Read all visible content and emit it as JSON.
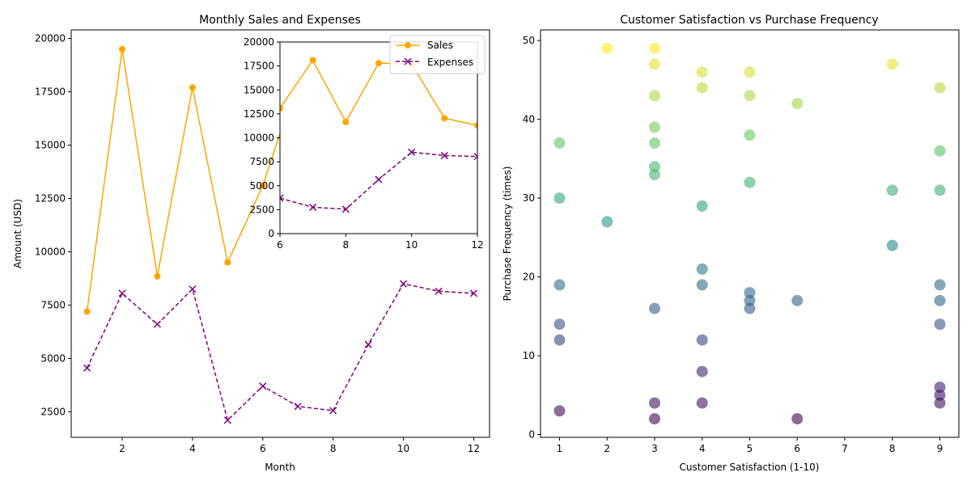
{
  "chart_data": [
    {
      "type": "line",
      "title": "Monthly Sales and Expenses",
      "xlabel": "Month",
      "ylabel": "Amount (USD)",
      "xlim": [
        0.55,
        12.45
      ],
      "ylim": [
        1300,
        20400
      ],
      "xticks": [
        2,
        4,
        6,
        8,
        10,
        12
      ],
      "yticks": [
        2500,
        5000,
        7500,
        10000,
        12500,
        15000,
        17500,
        20000
      ],
      "x": [
        1,
        2,
        3,
        4,
        5,
        6,
        7,
        8,
        9,
        10,
        11,
        12
      ],
      "series": [
        {
          "name": "Sales",
          "color": "#ffa500",
          "marker": "circle",
          "style": "solid",
          "values": [
            7200,
            19500,
            8850,
            17700,
            9500,
            13100,
            18100,
            11650,
            17800,
            17700,
            12050,
            11300
          ]
        },
        {
          "name": "Expenses",
          "color": "#800080",
          "marker": "x",
          "style": "dashed",
          "values": [
            4550,
            8050,
            6600,
            8250,
            2100,
            3700,
            2750,
            2550,
            5650,
            8500,
            8150,
            8050
          ]
        }
      ],
      "legend": "upper-right",
      "inset": {
        "xlim": [
          6,
          12
        ],
        "ylim": [
          0,
          20000
        ],
        "xticks": [
          6,
          8,
          10,
          12
        ],
        "yticks": [
          0,
          2500,
          5000,
          7500,
          10000,
          12500,
          15000,
          17500,
          20000
        ]
      }
    },
    {
      "type": "scatter",
      "title": "Customer Satisfaction vs Purchase Frequency",
      "xlabel": "Customer Satisfaction (1-10)",
      "ylabel": "Purchase Frequency (times)",
      "xlim": [
        0.6,
        9.4
      ],
      "ylim": [
        -0.35,
        51.35
      ],
      "xticks": [
        1,
        2,
        3,
        4,
        5,
        6,
        7,
        8,
        9
      ],
      "yticks": [
        0,
        10,
        20,
        30,
        40,
        50
      ],
      "colormap": "viridis",
      "color_range": [
        2,
        49
      ],
      "points": [
        {
          "x": 2,
          "y": 49
        },
        {
          "x": 3,
          "y": 49
        },
        {
          "x": 3,
          "y": 47
        },
        {
          "x": 8,
          "y": 47
        },
        {
          "x": 4,
          "y": 46
        },
        {
          "x": 5,
          "y": 46
        },
        {
          "x": 4,
          "y": 44
        },
        {
          "x": 9,
          "y": 44
        },
        {
          "x": 3,
          "y": 43
        },
        {
          "x": 5,
          "y": 43
        },
        {
          "x": 6,
          "y": 42
        },
        {
          "x": 3,
          "y": 39
        },
        {
          "x": 5,
          "y": 38
        },
        {
          "x": 1,
          "y": 37
        },
        {
          "x": 3,
          "y": 37
        },
        {
          "x": 9,
          "y": 36
        },
        {
          "x": 3,
          "y": 34
        },
        {
          "x": 3,
          "y": 33
        },
        {
          "x": 5,
          "y": 32
        },
        {
          "x": 8,
          "y": 31
        },
        {
          "x": 9,
          "y": 31
        },
        {
          "x": 1,
          "y": 30
        },
        {
          "x": 4,
          "y": 29
        },
        {
          "x": 2,
          "y": 27
        },
        {
          "x": 8,
          "y": 24
        },
        {
          "x": 4,
          "y": 21
        },
        {
          "x": 1,
          "y": 19
        },
        {
          "x": 4,
          "y": 19
        },
        {
          "x": 9,
          "y": 19
        },
        {
          "x": 5,
          "y": 18
        },
        {
          "x": 5,
          "y": 17
        },
        {
          "x": 6,
          "y": 17
        },
        {
          "x": 9,
          "y": 17
        },
        {
          "x": 3,
          "y": 16
        },
        {
          "x": 5,
          "y": 16
        },
        {
          "x": 1,
          "y": 14
        },
        {
          "x": 9,
          "y": 14
        },
        {
          "x": 1,
          "y": 12
        },
        {
          "x": 4,
          "y": 12
        },
        {
          "x": 4,
          "y": 8
        },
        {
          "x": 9,
          "y": 6
        },
        {
          "x": 9,
          "y": 5
        },
        {
          "x": 3,
          "y": 4
        },
        {
          "x": 4,
          "y": 4
        },
        {
          "x": 9,
          "y": 4
        },
        {
          "x": 1,
          "y": 3
        },
        {
          "x": 3,
          "y": 2
        },
        {
          "x": 6,
          "y": 2
        }
      ]
    }
  ]
}
